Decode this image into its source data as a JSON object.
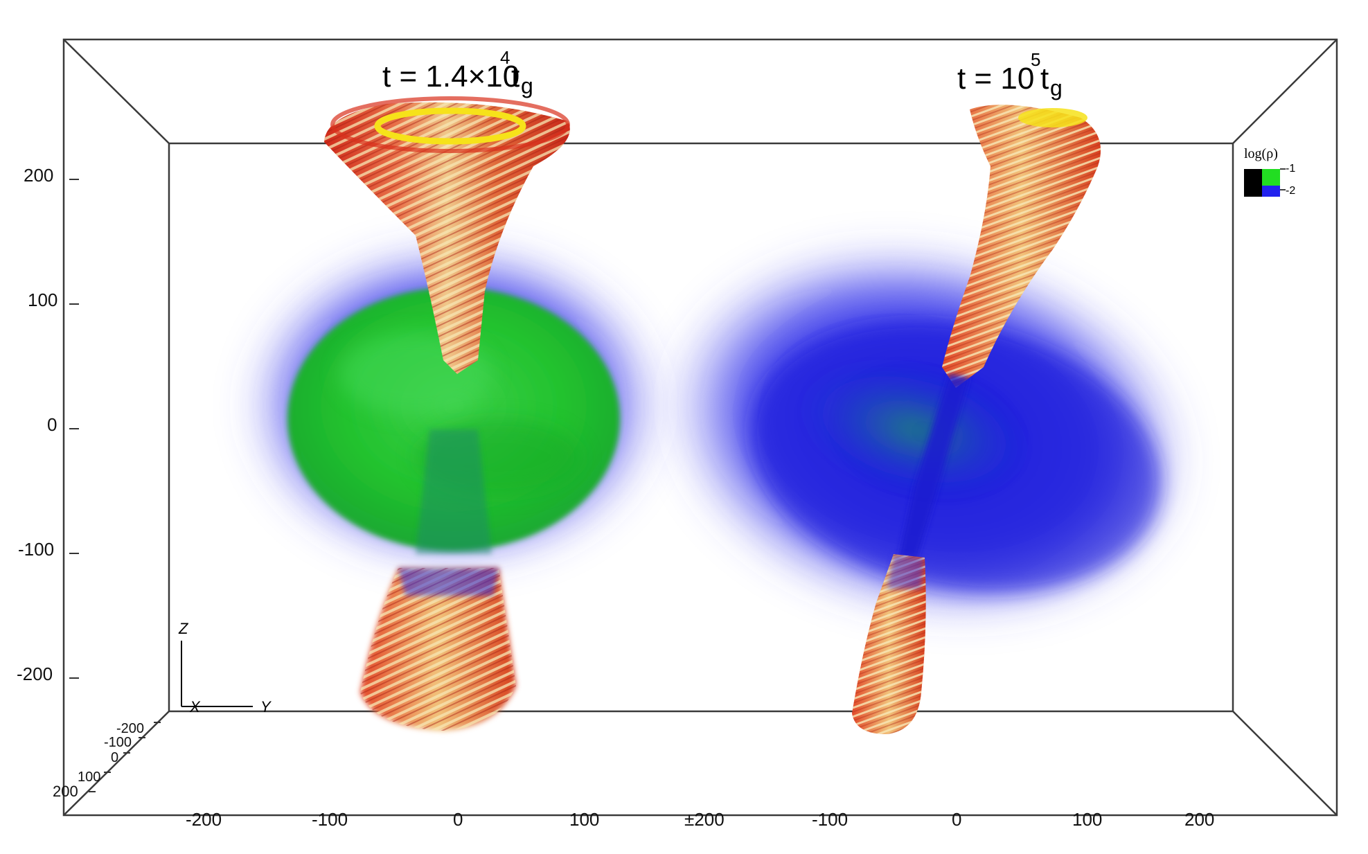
{
  "panels": [
    {
      "id": "left",
      "title_t": "t = 1.4×10",
      "title_exp": "4",
      "title_unit": "t",
      "title_unit_sub": "g"
    },
    {
      "id": "right",
      "title_t": "t = 10",
      "title_exp": "5",
      "title_unit": "t",
      "title_unit_sub": "g"
    }
  ],
  "z_axis_ticks": [
    "200",
    "100",
    "0",
    "-100",
    "-200"
  ],
  "x_depth_ticks": [
    "-200",
    "-100",
    "0",
    "100",
    "200"
  ],
  "y_axis_ticks_left": [
    "-200",
    "-100",
    "0",
    "100"
  ],
  "y_axis_ticks_right": [
    "±200",
    "-100",
    "0",
    "100",
    "200"
  ],
  "triad": {
    "z": "Z",
    "x": "X",
    "y": "Y"
  },
  "legend": {
    "title": "log(ρ)",
    "tick_high": "-1",
    "tick_low": "-2",
    "colors": {
      "high": "#22dd22",
      "low": "#2222ee",
      "floor": "#000000"
    }
  },
  "colors": {
    "jet_outer": "#d9331f",
    "jet_inner": "#f2d28a",
    "jet_core": "#f6e21a",
    "disk_dense": "#22c62a",
    "disk_diffuse": "#2a2ae6",
    "frame": "#333333"
  }
}
